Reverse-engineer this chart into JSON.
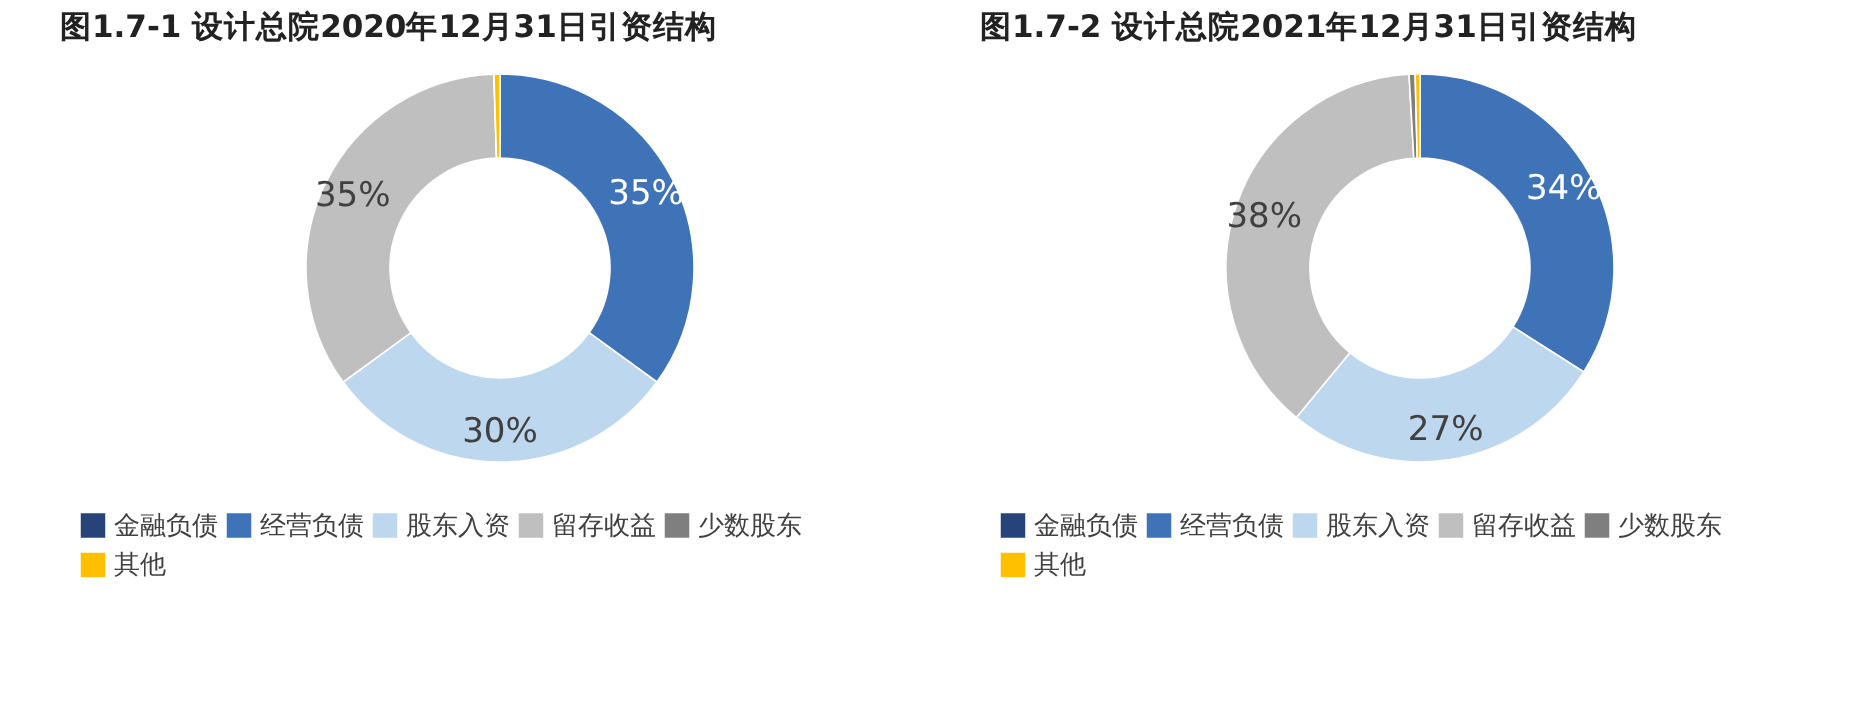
{
  "chart_data": [
    {
      "type": "donut",
      "title": "图1.7-1 设计总院2020年12月31日引资结构",
      "categories": [
        "金融负债",
        "经营负债",
        "股东入资",
        "留存收益",
        "少数股东",
        "其他"
      ],
      "values": [
        0,
        35,
        30,
        34.5,
        0,
        0.5
      ],
      "value_labels": [
        null,
        "35%",
        "30%",
        "35%",
        null,
        null
      ],
      "colors": [
        "#264478",
        "#3f73b8",
        "#bdd7ee",
        "#bfbfbf",
        "#7f7f7f",
        "#ffc000"
      ],
      "legend": "bottom"
    },
    {
      "type": "donut",
      "title": "图1.7-2 设计总院2021年12月31日引资结构",
      "categories": [
        "金融负债",
        "经营负债",
        "股东入资",
        "留存收益",
        "少数股东",
        "其他"
      ],
      "values": [
        0,
        34,
        27,
        38.1,
        0.5,
        0.4
      ],
      "value_labels": [
        null,
        "34%",
        "27%",
        "38%",
        null,
        null
      ],
      "colors": [
        "#264478",
        "#3f73b8",
        "#bdd7ee",
        "#bfbfbf",
        "#7f7f7f",
        "#ffc000"
      ],
      "legend": "bottom"
    }
  ]
}
